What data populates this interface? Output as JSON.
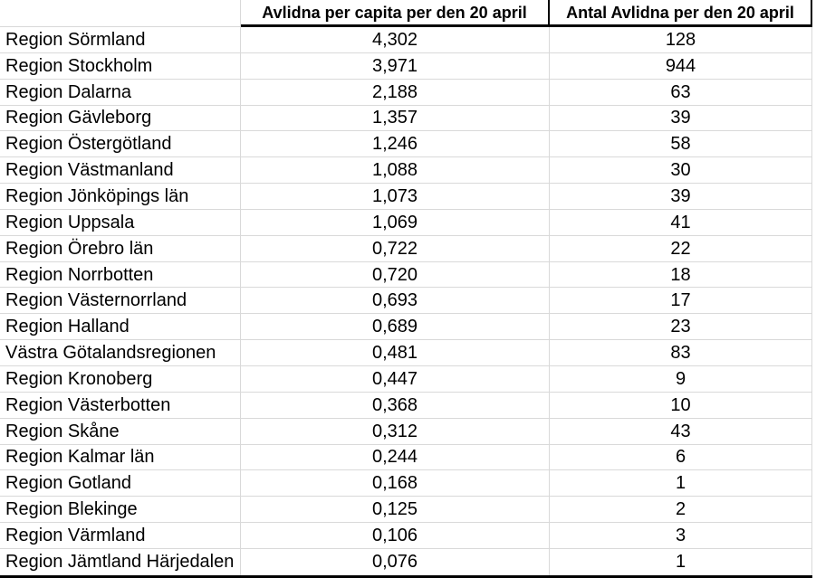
{
  "table": {
    "columns": {
      "region": "",
      "per_capita": "Avlidna per capita per den 20 april",
      "antal": "Antal Avlidna per den 20 april"
    },
    "rows": [
      {
        "region": "Region Sörmland",
        "per_capita": "4,302",
        "antal": "128"
      },
      {
        "region": "Region Stockholm",
        "per_capita": "3,971",
        "antal": "944"
      },
      {
        "region": "Region Dalarna",
        "per_capita": "2,188",
        "antal": "63"
      },
      {
        "region": "Region Gävleborg",
        "per_capita": "1,357",
        "antal": "39"
      },
      {
        "region": "Region Östergötland",
        "per_capita": "1,246",
        "antal": "58"
      },
      {
        "region": "Region Västmanland",
        "per_capita": "1,088",
        "antal": "30"
      },
      {
        "region": "Region Jönköpings län",
        "per_capita": "1,073",
        "antal": "39"
      },
      {
        "region": "Region Uppsala",
        "per_capita": "1,069",
        "antal": "41"
      },
      {
        "region": "Region Örebro län",
        "per_capita": "0,722",
        "antal": "22"
      },
      {
        "region": "Region Norrbotten",
        "per_capita": "0,720",
        "antal": "18"
      },
      {
        "region": "Region Västernorrland",
        "per_capita": "0,693",
        "antal": "17"
      },
      {
        "region": "Region Halland",
        "per_capita": "0,689",
        "antal": "23"
      },
      {
        "region": "Västra Götalandsregionen",
        "per_capita": "0,481",
        "antal": "83"
      },
      {
        "region": "Region Kronoberg",
        "per_capita": "0,447",
        "antal": "9"
      },
      {
        "region": "Region Västerbotten",
        "per_capita": "0,368",
        "antal": "10"
      },
      {
        "region": "Region Skåne",
        "per_capita": "0,312",
        "antal": "43"
      },
      {
        "region": "Region Kalmar län",
        "per_capita": "0,244",
        "antal": "6"
      },
      {
        "region": "Region Gotland",
        "per_capita": "0,168",
        "antal": "1"
      },
      {
        "region": "Region Blekinge",
        "per_capita": "0,125",
        "antal": "2"
      },
      {
        "region": "Region Värmland",
        "per_capita": "0,106",
        "antal": "3"
      },
      {
        "region": "Region Jämtland Härjedalen",
        "per_capita": "0,076",
        "antal": "1"
      }
    ]
  },
  "chart_data": {
    "type": "table",
    "title": "",
    "columns": [
      "",
      "Avlidna per capita per den 20 april",
      "Antal Avlidna per den 20 april"
    ],
    "rows": [
      [
        "Region Sörmland",
        4.302,
        128
      ],
      [
        "Region Stockholm",
        3.971,
        944
      ],
      [
        "Region Dalarna",
        2.188,
        63
      ],
      [
        "Region Gävleborg",
        1.357,
        39
      ],
      [
        "Region Östergötland",
        1.246,
        58
      ],
      [
        "Region Västmanland",
        1.088,
        30
      ],
      [
        "Region Jönköpings län",
        1.073,
        39
      ],
      [
        "Region Uppsala",
        1.069,
        41
      ],
      [
        "Region Örebro län",
        0.722,
        22
      ],
      [
        "Region Norrbotten",
        0.72,
        18
      ],
      [
        "Region Västernorrland",
        0.693,
        17
      ],
      [
        "Region Halland",
        0.689,
        23
      ],
      [
        "Västra Götalandsregionen",
        0.481,
        83
      ],
      [
        "Region Kronoberg",
        0.447,
        9
      ],
      [
        "Region Västerbotten",
        0.368,
        10
      ],
      [
        "Region Skåne",
        0.312,
        43
      ],
      [
        "Region Kalmar län",
        0.244,
        6
      ],
      [
        "Region Gotland",
        0.168,
        1
      ],
      [
        "Region Blekinge",
        0.125,
        2
      ],
      [
        "Region Värmland",
        0.106,
        3
      ],
      [
        "Region Jämtland Härjedalen",
        0.076,
        1
      ]
    ],
    "notes": "Decimal comma formatting (Swedish locale); rows sorted descending by per-capita deaths"
  },
  "colors": {
    "grid_border": "#d9d9d9",
    "strong_border": "#000000",
    "text": "#000000",
    "background": "#ffffff"
  }
}
